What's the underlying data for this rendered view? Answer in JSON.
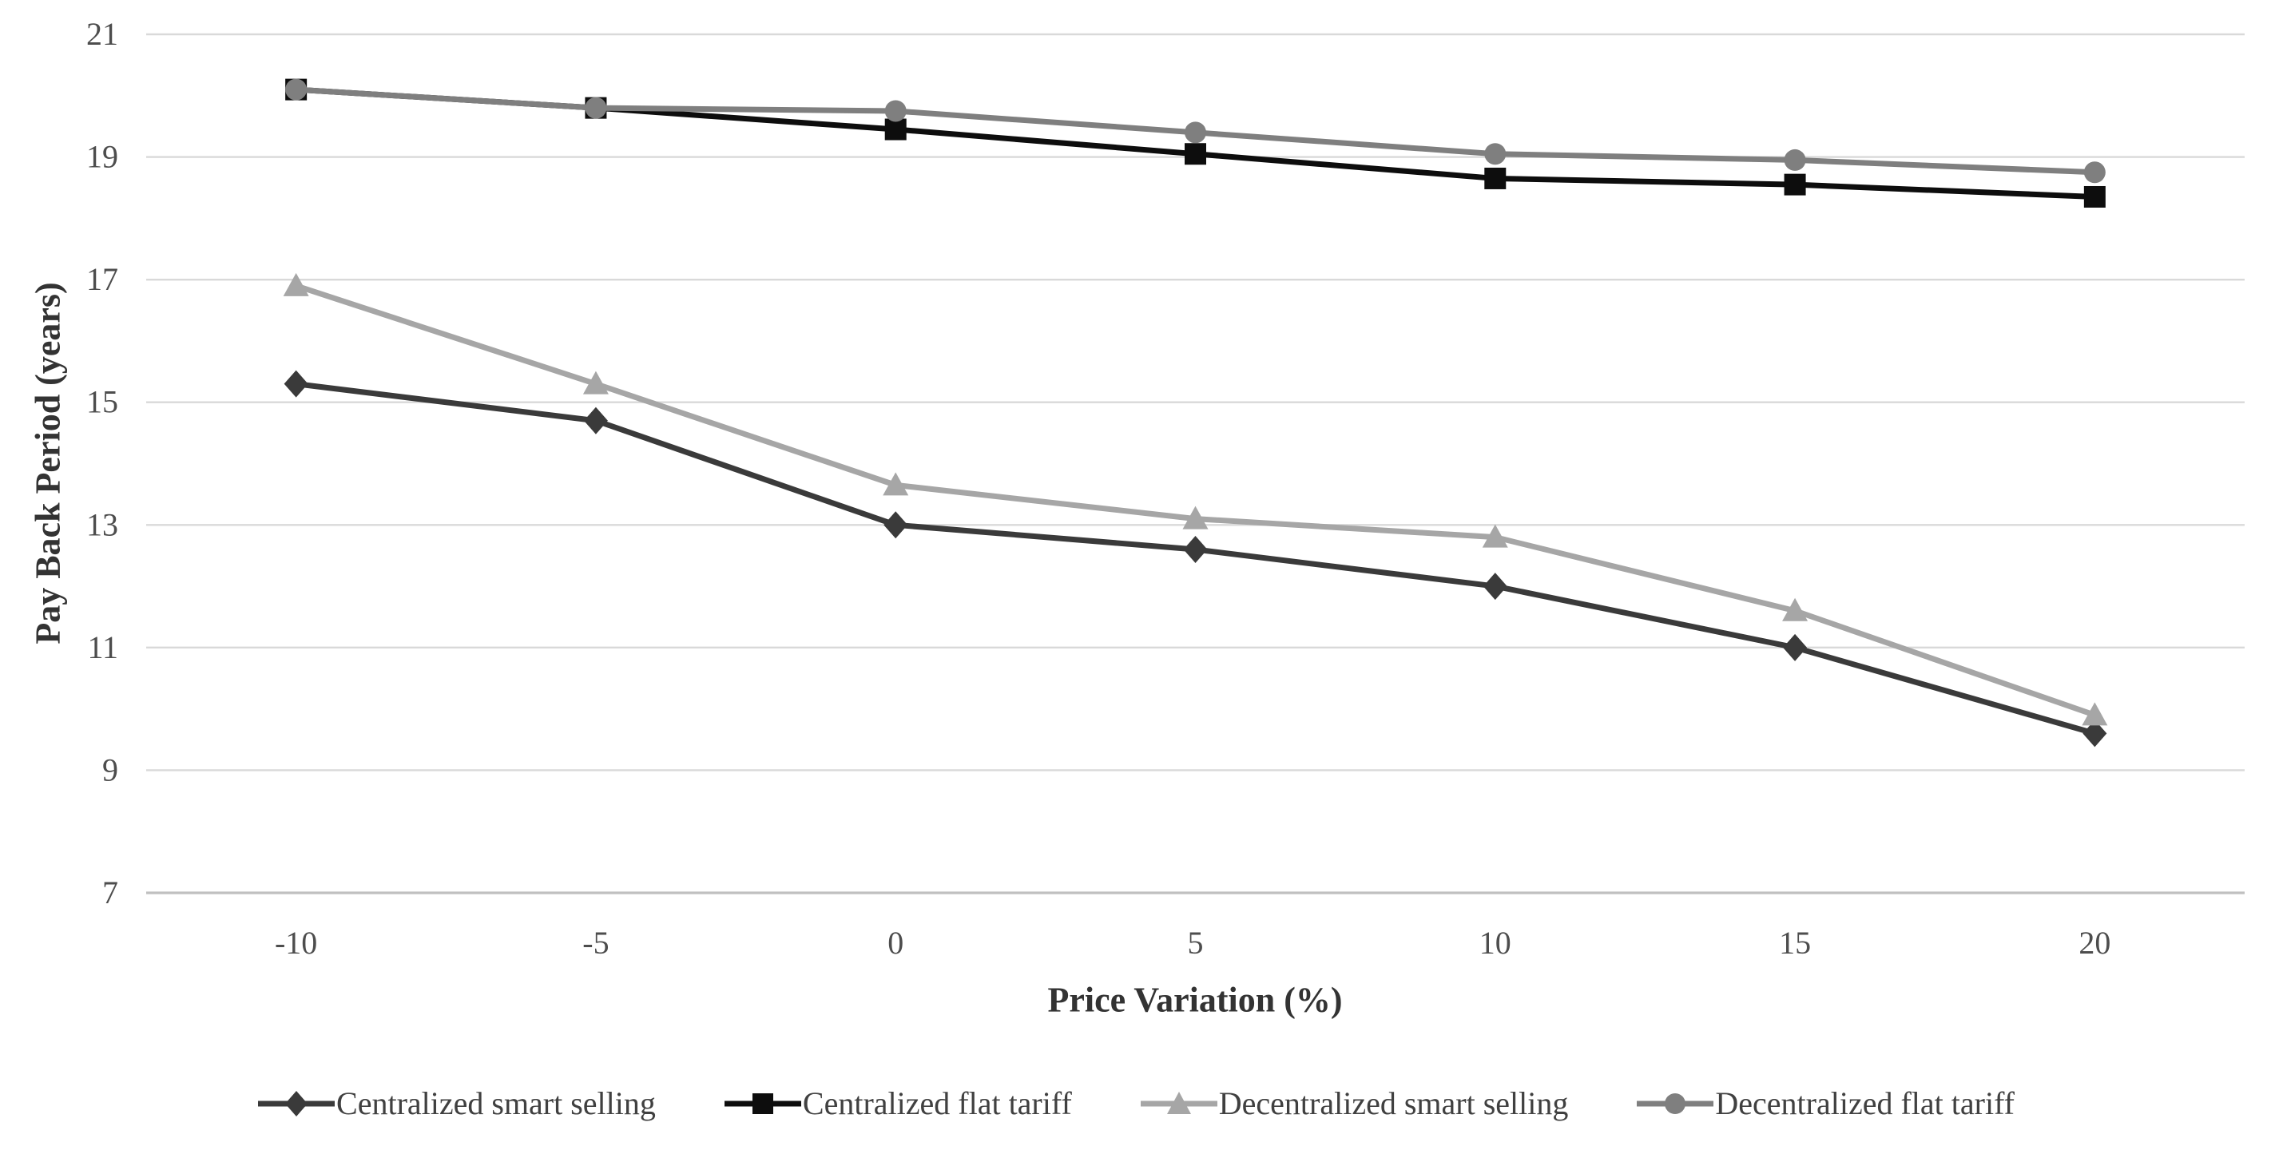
{
  "chart_data": {
    "type": "line",
    "title": "",
    "xlabel": "Price Variation (%)",
    "ylabel": "Pay Back Period (years)",
    "x_tick_labels": [
      "-10",
      "-5",
      "0",
      "5",
      "10",
      "15",
      "20"
    ],
    "x_values": [
      -10,
      -5,
      0,
      5,
      10,
      15,
      20
    ],
    "y_ticks": [
      21,
      19,
      17,
      15,
      13,
      11,
      9,
      7
    ],
    "ylim": [
      7,
      21
    ],
    "grid": "horizontal-only",
    "legend_position": "bottom",
    "series": [
      {
        "name": "Centralized smart selling",
        "marker": "diamond",
        "color": "#3a3a3a",
        "values": [
          15.3,
          14.7,
          13.0,
          12.6,
          12.0,
          11.0,
          9.6
        ]
      },
      {
        "name": "Centralized flat tariff",
        "marker": "square",
        "color": "#0d0d0d",
        "values": [
          20.1,
          19.8,
          19.45,
          19.05,
          18.65,
          18.55,
          18.35
        ]
      },
      {
        "name": "Decentralized smart selling",
        "marker": "triangle",
        "color": "#a6a6a6",
        "values": [
          16.9,
          15.3,
          13.65,
          13.1,
          12.8,
          11.6,
          9.9
        ]
      },
      {
        "name": "Decentralized flat tariff",
        "marker": "circle",
        "color": "#7f7f7f",
        "values": [
          20.1,
          19.8,
          19.75,
          19.4,
          19.05,
          18.95,
          18.75
        ]
      }
    ],
    "colors": {
      "gridline": "#d9d9d9",
      "axis_line": "#c0c0c0",
      "tick_text": "#4d4d4d",
      "title_text": "#333333"
    }
  }
}
